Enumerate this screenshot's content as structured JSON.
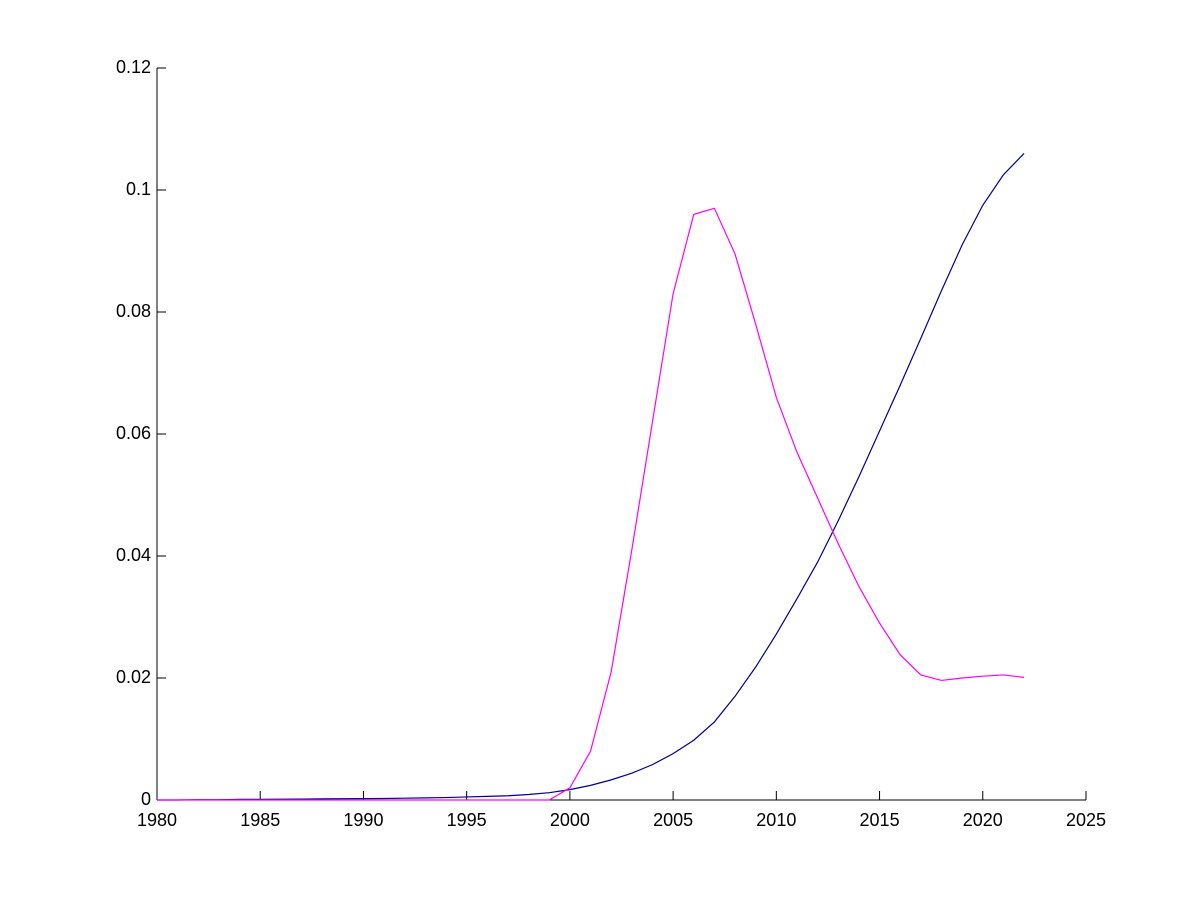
{
  "chart_data": {
    "type": "line",
    "x": [
      1980,
      1981,
      1982,
      1983,
      1984,
      1985,
      1986,
      1987,
      1988,
      1989,
      1990,
      1991,
      1992,
      1993,
      1994,
      1995,
      1996,
      1997,
      1998,
      1999,
      2000,
      2001,
      2002,
      2003,
      2004,
      2005,
      2006,
      2007,
      2008,
      2009,
      2010,
      2011,
      2012,
      2013,
      2014,
      2015,
      2016,
      2017,
      2018,
      2019,
      2020,
      2021,
      2022
    ],
    "series": [
      {
        "color": "#00008b",
        "values": [
          0,
          0,
          5e-05,
          5e-05,
          0.0001,
          0.0001,
          0.00012,
          0.00015,
          0.00018,
          0.0002,
          0.00022,
          0.00025,
          0.0003,
          0.00035,
          0.0004,
          0.0005,
          0.0006,
          0.0007,
          0.0009,
          0.0012,
          0.0017,
          0.0024,
          0.0033,
          0.0044,
          0.0058,
          0.0076,
          0.0098,
          0.0128,
          0.017,
          0.0218,
          0.0272,
          0.033,
          0.039,
          0.0458,
          0.053,
          0.0605,
          0.068,
          0.0757,
          0.0835,
          0.091,
          0.0975,
          0.1025,
          0.106
        ]
      },
      {
        "color": "#ff00ff",
        "values": [
          0,
          0,
          0,
          0,
          0,
          0,
          0,
          0,
          0,
          0,
          0,
          0,
          0,
          0,
          0,
          0,
          0,
          0,
          0,
          0,
          0.002,
          0.008,
          0.021,
          0.041,
          0.062,
          0.083,
          0.096,
          0.097,
          0.0895,
          0.078,
          0.066,
          0.057,
          0.0495,
          0.042,
          0.035,
          0.029,
          0.0238,
          0.0205,
          0.0196,
          0.02,
          0.0203,
          0.0205,
          0.0201
        ]
      }
    ],
    "xlim": [
      1980,
      2025
    ],
    "xticks": [
      1980,
      1985,
      1990,
      1995,
      2000,
      2005,
      2010,
      2015,
      2020,
      2025
    ],
    "ylim": [
      0,
      0.12
    ],
    "yticks": [
      0,
      0.02,
      0.04,
      0.06,
      0.08,
      0.1,
      0.12
    ]
  }
}
